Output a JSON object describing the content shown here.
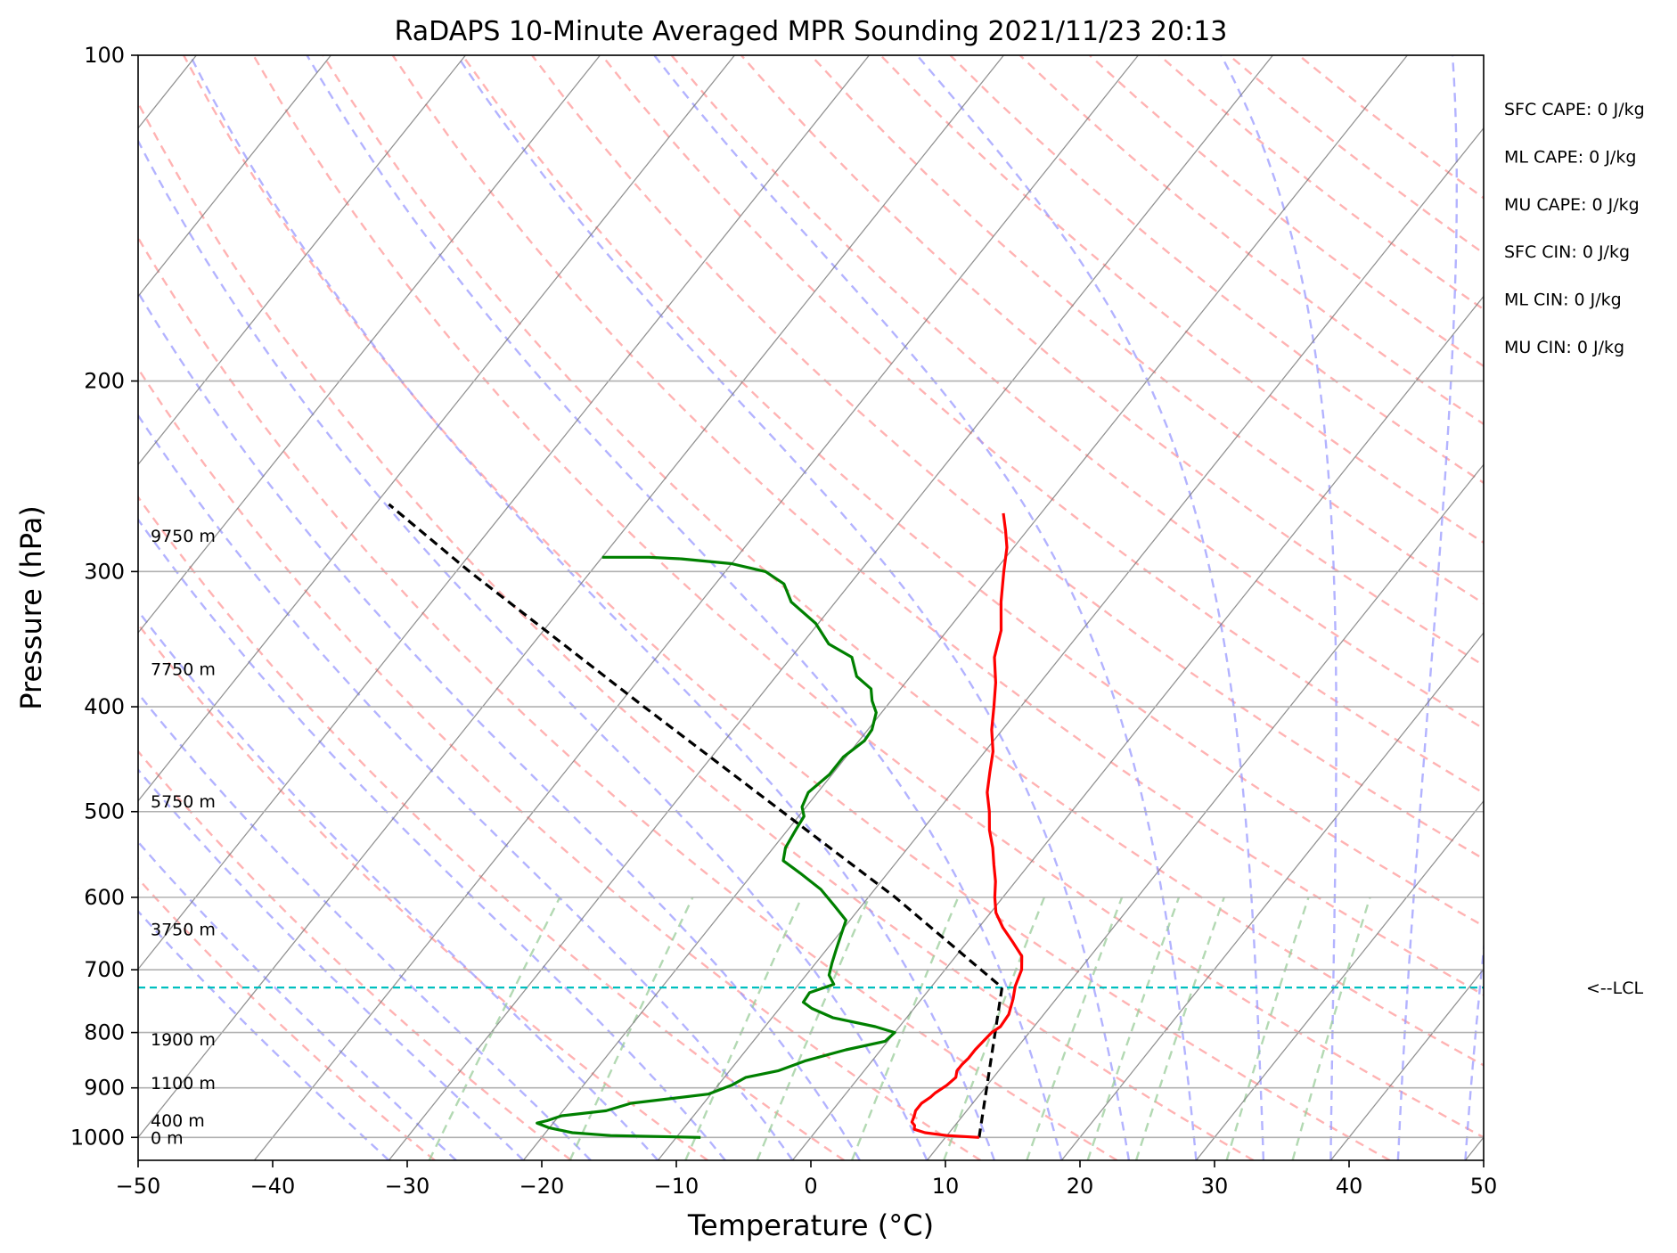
{
  "chart_data": {
    "type": "skew-t",
    "title": "RaDAPS 10-Minute Averaged MPR Sounding 2021/11/23 20:13",
    "xlabel": "Temperature (°C)",
    "ylabel": "Pressure (hPa)",
    "xlim": [
      -50,
      50
    ],
    "ylim": [
      1050,
      100
    ],
    "y_scale": "log",
    "grid": true,
    "x_ticks": [
      "−50",
      "−40",
      "−30",
      "−20",
      "−10",
      "0",
      "10",
      "20",
      "30",
      "40",
      "50"
    ],
    "y_ticks": [
      "100",
      "200",
      "300",
      "400",
      "500",
      "600",
      "700",
      "800",
      "900",
      "1000"
    ],
    "temperature_profile": {
      "color": "#ff0000",
      "points": [
        [
          1000,
          12.5
        ],
        [
          996,
          10.0
        ],
        [
          990,
          8.2
        ],
        [
          983,
          7.2
        ],
        [
          975,
          7.0
        ],
        [
          968,
          6.6
        ],
        [
          955,
          6.4
        ],
        [
          945,
          6.2
        ],
        [
          930,
          6.2
        ],
        [
          918,
          6.5
        ],
        [
          910,
          6.6
        ],
        [
          895,
          7.0
        ],
        [
          880,
          7.2
        ],
        [
          868,
          6.9
        ],
        [
          856,
          6.9
        ],
        [
          845,
          7.0
        ],
        [
          830,
          7.0
        ],
        [
          815,
          7.1
        ],
        [
          800,
          7.2
        ],
        [
          790,
          7.5
        ],
        [
          770,
          7.4
        ],
        [
          745,
          6.8
        ],
        [
          725,
          6.2
        ],
        [
          700,
          5.7
        ],
        [
          680,
          4.9
        ],
        [
          660,
          3.4
        ],
        [
          640,
          1.8
        ],
        [
          620,
          0.4
        ],
        [
          600,
          -0.6
        ],
        [
          580,
          -1.5
        ],
        [
          560,
          -2.6
        ],
        [
          540,
          -3.7
        ],
        [
          520,
          -5.0
        ],
        [
          500,
          -6.1
        ],
        [
          480,
          -7.4
        ],
        [
          460,
          -8.4
        ],
        [
          440,
          -9.4
        ],
        [
          420,
          -10.8
        ],
        [
          400,
          -12.0
        ],
        [
          380,
          -13.3
        ],
        [
          360,
          -14.9
        ],
        [
          340,
          -16.0
        ],
        [
          320,
          -17.7
        ],
        [
          300,
          -19.3
        ],
        [
          285,
          -20.5
        ],
        [
          275,
          -21.6
        ],
        [
          265,
          -22.8
        ]
      ]
    },
    "dewpoint_profile": {
      "color": "#008000",
      "points": [
        [
          1000,
          -8.2
        ],
        [
          996,
          -15.0
        ],
        [
          990,
          -18.0
        ],
        [
          980,
          -20.0
        ],
        [
          970,
          -21.2
        ],
        [
          965,
          -20.6
        ],
        [
          955,
          -19.8
        ],
        [
          945,
          -16.8
        ],
        [
          930,
          -15.4
        ],
        [
          912,
          -10.2
        ],
        [
          895,
          -9.0
        ],
        [
          880,
          -8.4
        ],
        [
          868,
          -6.4
        ],
        [
          850,
          -5.0
        ],
        [
          830,
          -2.6
        ],
        [
          815,
          -0.2
        ],
        [
          800,
          0.0
        ],
        [
          790,
          -1.8
        ],
        [
          775,
          -5.5
        ],
        [
          760,
          -7.6
        ],
        [
          750,
          -8.6
        ],
        [
          735,
          -8.7
        ],
        [
          722,
          -7.4
        ],
        [
          708,
          -8.3
        ],
        [
          690,
          -8.8
        ],
        [
          670,
          -9.3
        ],
        [
          650,
          -9.8
        ],
        [
          630,
          -10.3
        ],
        [
          610,
          -12.1
        ],
        [
          590,
          -14.0
        ],
        [
          570,
          -16.5
        ],
        [
          555,
          -18.5
        ],
        [
          540,
          -19.1
        ],
        [
          520,
          -19.4
        ],
        [
          505,
          -19.6
        ],
        [
          495,
          -20.3
        ],
        [
          480,
          -20.7
        ],
        [
          462,
          -20.2
        ],
        [
          445,
          -20.2
        ],
        [
          430,
          -19.6
        ],
        [
          420,
          -19.7
        ],
        [
          405,
          -20.4
        ],
        [
          395,
          -21.4
        ],
        [
          385,
          -22.2
        ],
        [
          375,
          -24.0
        ],
        [
          360,
          -25.5
        ],
        [
          350,
          -28.0
        ],
        [
          335,
          -30.2
        ],
        [
          320,
          -33.3
        ],
        [
          308,
          -34.9
        ],
        [
          300,
          -37.0
        ],
        [
          295,
          -40.0
        ],
        [
          292,
          -44.0
        ],
        [
          291,
          -46.5
        ],
        [
          291,
          -50.0
        ]
      ]
    },
    "parcel_profile": {
      "color": "#000000",
      "points": [
        [
          1000,
          12.5
        ],
        [
          727,
          5.3
        ],
        [
          600,
          -8.0
        ],
        [
          500,
          -21.5
        ],
        [
          400,
          -38.0
        ],
        [
          300,
          -59.0
        ],
        [
          260,
          -69.0
        ]
      ]
    },
    "lcl_pressure": 727,
    "lcl_label": "<--LCL",
    "height_labels": [
      {
        "text": "0 m",
        "pressure": 1000
      },
      {
        "text": "400 m",
        "pressure": 964
      },
      {
        "text": "1100 m",
        "pressure": 890
      },
      {
        "text": "1900 m",
        "pressure": 811
      },
      {
        "text": "3750 m",
        "pressure": 642
      },
      {
        "text": "5750 m",
        "pressure": 489
      },
      {
        "text": "7750 m",
        "pressure": 369
      },
      {
        "text": "9750 m",
        "pressure": 278
      }
    ],
    "indices": [
      "SFC CAPE: 0 J/kg",
      "ML CAPE: 0 J/kg",
      "MU CAPE: 0 J/kg",
      "SFC CIN: 0 J/kg",
      "ML CIN: 0 J/kg",
      "MU CIN: 0 J/kg"
    ],
    "colors": {
      "dry_adiabat": "#ff9999",
      "moist_adiabat": "#9999ff",
      "mixing_ratio": "#99cc99",
      "isotherm": "#808080",
      "lcl_line": "#00bfbf"
    }
  }
}
